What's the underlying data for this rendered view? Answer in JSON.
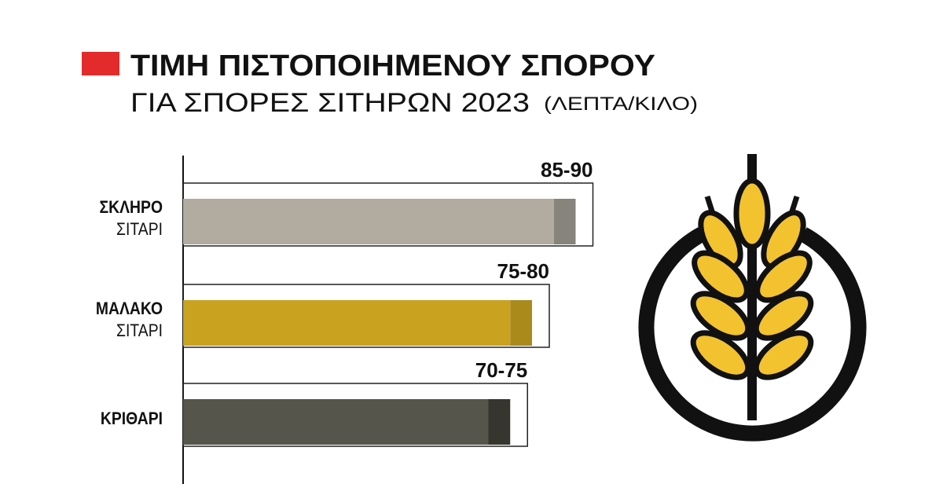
{
  "chart_data": {
    "type": "bar",
    "orientation": "horizontal",
    "title": "ΤΙΜΗ ΠΙΣΤΟΠΟΙΗΜΕΝΟΥ ΣΠΟΡΟΥ",
    "subtitle": "ΓΙΑ ΣΠΟΡΕΣ ΣΙΤΗΡΩΝ 2023",
    "unit_note": "(ΛΕΠΤΑ/ΚΙΛΟ)",
    "categories": [
      "ΣΚΛΗΡΟ ΣΙΤΑΡΙ",
      "ΜΑΛΑΚΟ ΣΙΤΑΡΙ",
      "ΚΡΙΘΑΡΙ"
    ],
    "low": [
      85,
      75,
      70
    ],
    "high": [
      90,
      80,
      75
    ],
    "value_labels": [
      "85-90",
      "75-80",
      "70-75"
    ],
    "colors": [
      [
        "#b1ac9f",
        "#86847b"
      ],
      [
        "#c9a21f",
        "#a98a1a"
      ],
      [
        "#56554b",
        "#36362f"
      ]
    ],
    "xlim": [
      0,
      100
    ]
  }
}
